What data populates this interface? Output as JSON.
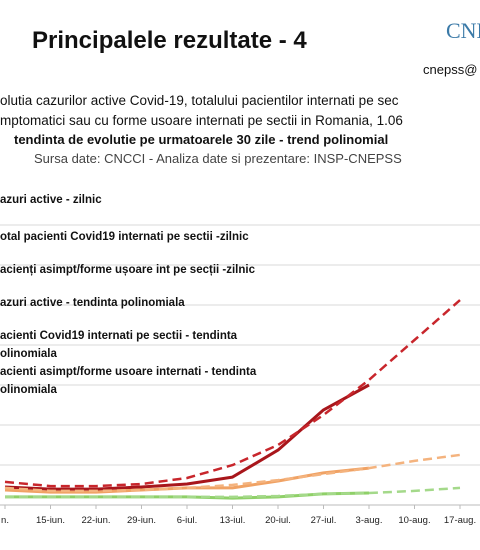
{
  "header": {
    "title": "Principalele rezultate - 4",
    "logo": "CNE",
    "email": "cnepss@"
  },
  "chart_data": {
    "type": "line",
    "subtitle": [
      "olutia cazurilor active Covid-19, totalului pacientilor internati pe sec",
      "mptomatici sau cu forme usoare internati pe sectii in Romania, 1.06",
      "tendinta de evolutie pe urmatoarele 30 zile - trend polinomial",
      "Sursa date: CNCCI  -  Analiza date si prezentare: INSP-CNEPSS"
    ],
    "categories": [
      "n.",
      "15-iun.",
      "22-iun.",
      "29-iun.",
      "6-iul.",
      "13-iul.",
      "20-iul.",
      "27-iul.",
      "3-aug.",
      "10-aug.",
      "17-aug."
    ],
    "ylim": [
      0,
      100
    ],
    "grid": true,
    "series": [
      {
        "name": "azuri active - zilnic",
        "color": "#a8161b",
        "dashed": false,
        "values": [
          6,
          5.3,
          5.3,
          6,
          7,
          9.3,
          18.3,
          31.7,
          40,
          null,
          null
        ]
      },
      {
        "name": "otal pacienti Covid19 internati pe sectii -zilnic",
        "color": "#f0a264",
        "dashed": false,
        "values": [
          5,
          4.3,
          4.3,
          5,
          5.7,
          5.7,
          8,
          10.7,
          12.3,
          null,
          null
        ]
      },
      {
        "name": "acienți asimpt/forme ușoare int pe secții -zilnic",
        "color": "#8fd068",
        "dashed": false,
        "values": [
          2.7,
          2.7,
          2.7,
          2.7,
          2.7,
          2.3,
          2.7,
          3.7,
          4,
          null,
          null
        ]
      },
      {
        "name": "azuri active - tendinta polinomiala",
        "color": "#c8262c",
        "dashed": true,
        "values": [
          7.7,
          6.3,
          6.3,
          7,
          9,
          13.3,
          20,
          30,
          41.7,
          55,
          68.3
        ]
      },
      {
        "name": "acienti Covid19 internati pe sectii - tendinta\nolinomiala",
        "color": "#f4b37e",
        "dashed": true,
        "values": [
          5.7,
          4.7,
          4.7,
          5,
          5.7,
          6.7,
          8.3,
          10.3,
          12.3,
          14.7,
          16.7
        ]
      },
      {
        "name": "acienti asimpt/forme usoare internati - tendinta\nolinomiala",
        "color": "#a4d98a",
        "dashed": true,
        "values": [
          2.7,
          2.7,
          2.7,
          2.7,
          2.7,
          2.7,
          3,
          3.7,
          4,
          4.7,
          5.7
        ]
      }
    ]
  }
}
